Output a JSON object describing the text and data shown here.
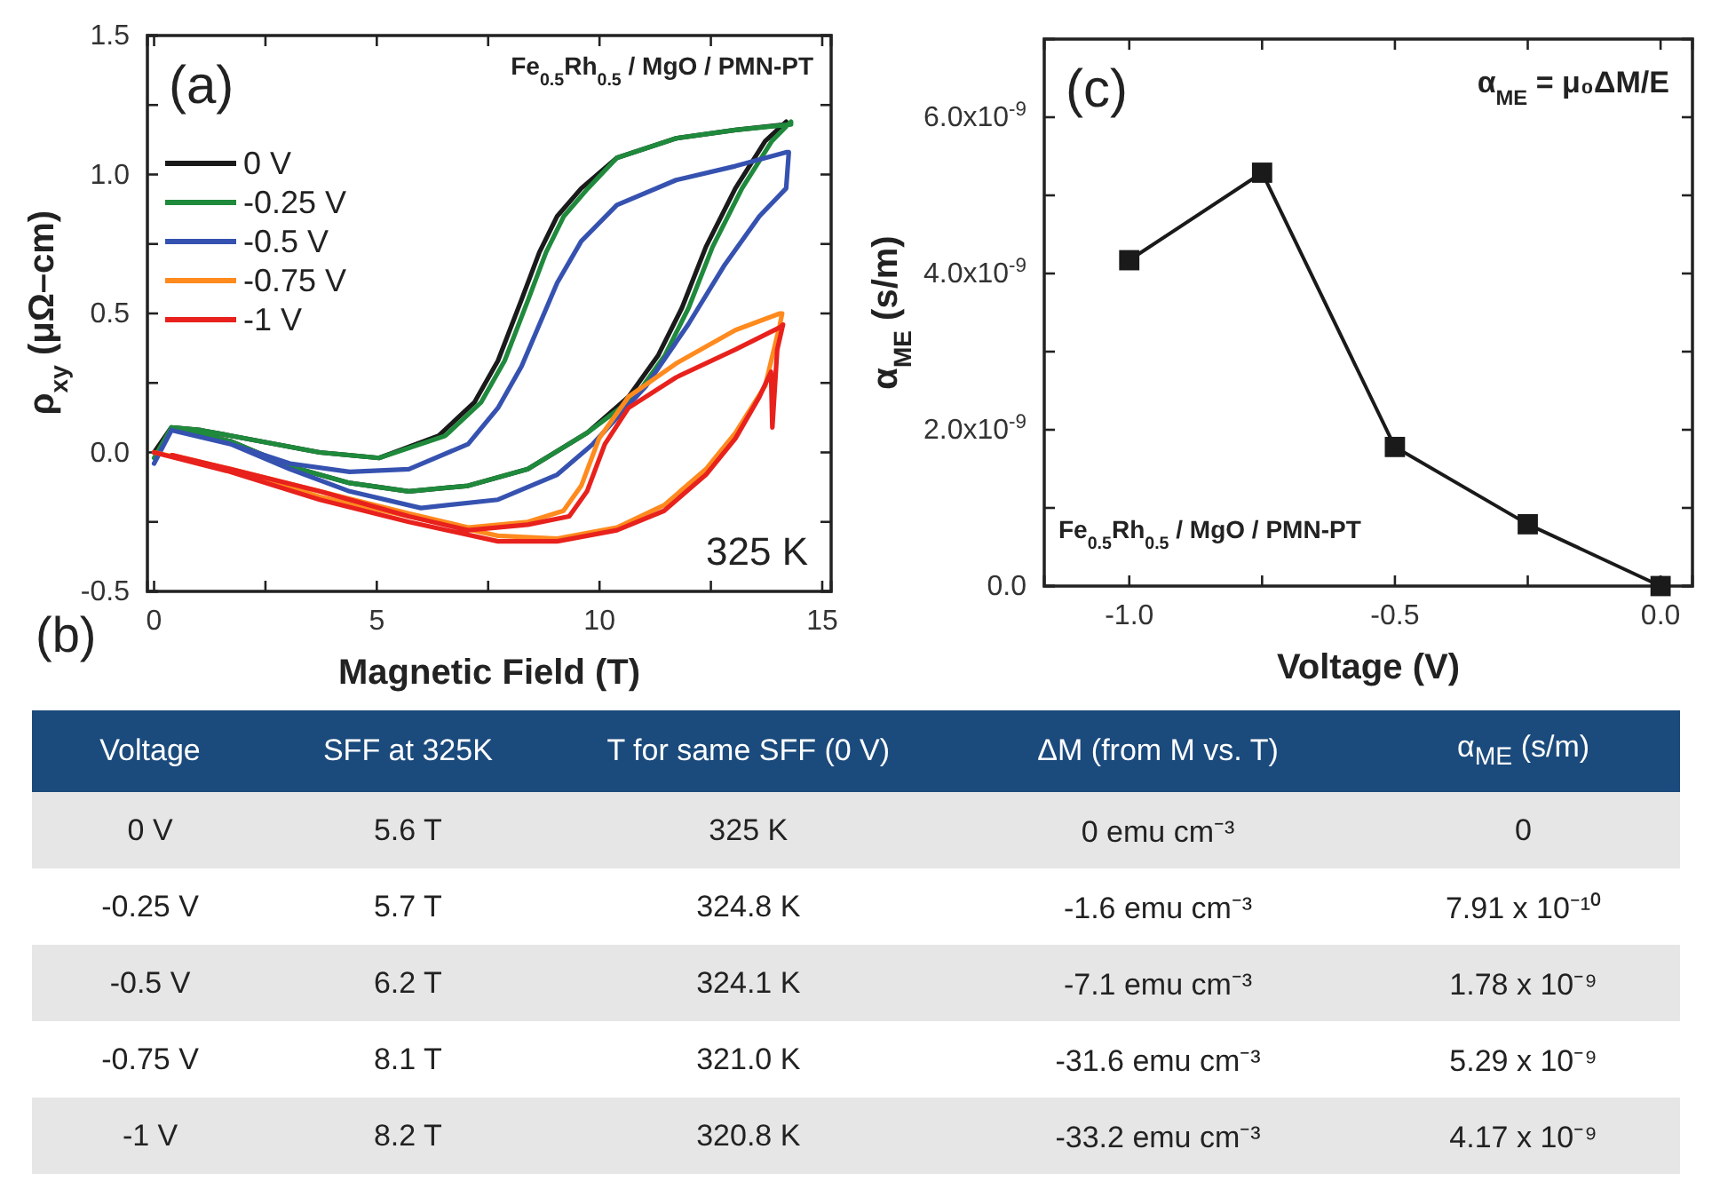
{
  "chart_data": [
    {
      "type": "line",
      "title": "(a)",
      "xlabel": "Magnetic Field (T)",
      "ylabel": "ρ$_{xy}$ (μΩ–cm)",
      "xlim": [
        -0.15,
        15.2
      ],
      "ylim": [
        -0.5,
        1.5
      ],
      "xticks": [
        0,
        {
          "value": 2.5,
          "label": null
        },
        5,
        {
          "value": 7.5,
          "label": null
        },
        10,
        {
          "value": 12.5,
          "label": null
        },
        15
      ],
      "yticks": [
        -0.5,
        {
          "value": -0.25,
          "label": null
        },
        {
          "value": 0,
          "label": "0.0"
        },
        {
          "value": 0.25,
          "label": null
        },
        0.5,
        {
          "value": 0.75,
          "label": null
        },
        {
          "value": 1,
          "label": "1.0"
        },
        {
          "value": 1.25,
          "label": null
        },
        1.5
      ],
      "grid": false,
      "legend": "top left",
      "marker": "none",
      "line_style": "solid",
      "annotations": [
        "Fe$_{0.5}$Rh$_{0.5}$ / MgO / PMN-PT",
        "325 K"
      ],
      "series": [
        {
          "name": "0 V",
          "color": "#1a1a1a",
          "x": [
            0,
            0.39,
            1.72,
            3.05,
            4.39,
            5.72,
            7.05,
            8.39,
            9.72,
            10.65,
            11.32,
            11.85,
            12.39,
            13.05,
            13.72,
            14.19,
            14.19,
            13.05,
            11.72,
            10.39,
            9.59,
            9.05,
            8.65,
            8.25,
            7.72,
            7.19,
            6.39,
            5.05,
            3.72,
            2.39,
            1.05,
            0.39
          ],
          "values": [
            0,
            0.09,
            0.04,
            -0.05,
            -0.11,
            -0.14,
            -0.12,
            -0.06,
            0.07,
            0.2,
            0.35,
            0.52,
            0.74,
            0.95,
            1.12,
            1.19,
            1.18,
            1.16,
            1.13,
            1.06,
            0.95,
            0.85,
            0.72,
            0.55,
            0.33,
            0.18,
            0.06,
            -0.02,
            0,
            0.04,
            0.08,
            0.09
          ]
        },
        {
          "name": "-0.25 V",
          "color": "#1f8a3c",
          "x": [
            0,
            0.39,
            1.72,
            3.05,
            4.39,
            5.72,
            7.05,
            8.39,
            9.72,
            10.8,
            11.47,
            12.0,
            12.54,
            13.2,
            13.87,
            14.3,
            14.3,
            13.05,
            11.72,
            10.39,
            9.74,
            9.2,
            8.8,
            8.4,
            7.87,
            7.34,
            6.54,
            5.05,
            3.72,
            2.39,
            1.05,
            0.39
          ],
          "values": [
            -0.02,
            0.09,
            0.04,
            -0.05,
            -0.11,
            -0.14,
            -0.12,
            -0.06,
            0.07,
            0.2,
            0.35,
            0.52,
            0.74,
            0.95,
            1.12,
            1.19,
            1.18,
            1.16,
            1.13,
            1.06,
            0.95,
            0.85,
            0.72,
            0.55,
            0.33,
            0.18,
            0.06,
            -0.02,
            0,
            0.04,
            0.08,
            0.09
          ]
        },
        {
          "name": "-0.5 V",
          "color": "#3652b0",
          "x": [
            0,
            0.39,
            1.72,
            3.05,
            4.39,
            5.99,
            7.72,
            9.05,
            9.85,
            11.05,
            11.99,
            12.79,
            13.59,
            14.19,
            14.25,
            14.19,
            13.05,
            11.72,
            10.39,
            9.59,
            9.05,
            8.65,
            8.25,
            7.72,
            7.05,
            5.72,
            4.39,
            3.05,
            1.72,
            0.39
          ],
          "values": [
            -0.04,
            0.08,
            0.03,
            -0.06,
            -0.14,
            -0.2,
            -0.17,
            -0.08,
            0.03,
            0.24,
            0.46,
            0.67,
            0.85,
            0.95,
            1.08,
            1.08,
            1.03,
            0.98,
            0.89,
            0.76,
            0.61,
            0.46,
            0.31,
            0.16,
            0.03,
            -0.06,
            -0.07,
            -0.04,
            0.03,
            0.08
          ]
        },
        {
          "name": "-0.75 V",
          "color": "#ff8a1e",
          "x": [
            0,
            1.72,
            3.72,
            5.72,
            7.72,
            9.05,
            10.39,
            11.45,
            12.39,
            13.05,
            13.72,
            14.05,
            14.1,
            14.05,
            13.05,
            11.72,
            10.65,
            9.99,
            9.59,
            9.19,
            8.39,
            7.05,
            5.72,
            3.72,
            1.72,
            0.4
          ],
          "values": [
            0,
            -0.06,
            -0.16,
            -0.23,
            -0.3,
            -0.31,
            -0.27,
            -0.19,
            -0.06,
            0.07,
            0.24,
            0.46,
            0.5,
            0.5,
            0.44,
            0.32,
            0.2,
            0.05,
            -0.12,
            -0.21,
            -0.25,
            -0.27,
            -0.22,
            -0.14,
            -0.06,
            -0.01
          ]
        },
        {
          "name": "-1 V",
          "color": "#e8211d",
          "x": [
            0,
            1.72,
            3.72,
            5.72,
            7.72,
            9.05,
            10.39,
            11.45,
            12.39,
            13.05,
            13.59,
            13.85,
            13.88,
            13.99,
            14.12,
            14.05,
            13.05,
            11.72,
            10.65,
            10.12,
            9.72,
            9.32,
            8.39,
            7.05,
            5.72,
            3.72,
            1.72,
            0.4
          ],
          "values": [
            0,
            -0.07,
            -0.17,
            -0.25,
            -0.32,
            -0.32,
            -0.28,
            -0.21,
            -0.08,
            0.05,
            0.2,
            0.29,
            0.09,
            0.37,
            0.46,
            0.45,
            0.37,
            0.27,
            0.16,
            0.03,
            -0.14,
            -0.23,
            -0.26,
            -0.28,
            -0.23,
            -0.14,
            -0.06,
            -0.01
          ]
        }
      ]
    },
    {
      "type": "line",
      "title": "(c)",
      "xlabel": "Voltage (V)",
      "ylabel": "α$_{ME}$ (s/m)",
      "xlim": [
        -1.16,
        0.06
      ],
      "ylim": [
        0,
        7e-09
      ],
      "xticks": [
        {
          "value": -1,
          "label": "-1.0"
        },
        {
          "value": -0.75,
          "label": null
        },
        -0.5,
        {
          "value": -0.25,
          "label": null
        },
        {
          "value": 0,
          "label": "0.0"
        }
      ],
      "yticks": [
        {
          "value": 0,
          "label": "0.0"
        },
        {
          "value": 1e-09,
          "label": null
        },
        {
          "value": 2e-09,
          "label": "2.0x10$^{-9}$"
        },
        {
          "value": 3e-09,
          "label": null
        },
        {
          "value": 4e-09,
          "label": "4.0x10$^{-9}$"
        },
        {
          "value": 5e-09,
          "label": null
        },
        {
          "value": 6e-09,
          "label": "6.0x10$^{-9}$"
        }
      ],
      "grid": false,
      "legend": false,
      "marker": "square",
      "line_style": "solid",
      "annotations": [
        "α$_{ME}$ = μ₀ΔM/E",
        "Fe$_{0.5}$Rh$_{0.5}$ / MgO / PMN-PT"
      ],
      "series": [
        {
          "color": "#1a1a1a",
          "x": [
            -1,
            -0.75,
            -0.5,
            -0.25,
            0
          ],
          "values": [
            4.17e-09,
            5.29e-09,
            1.78e-09,
            7.91e-10,
            0
          ]
        }
      ]
    },
    {
      "type": "heatmap",
      "title": "(b)",
      "ylabel": "Voltage",
      "categories": [
        "SFF at 325K",
        "T for same SFF (0 V)",
        "ΔM (from M vs. T)",
        "α$_{ME}$ (s/m)"
      ],
      "y_categories": [
        "0 V",
        "-0.25 V",
        "-0.5 V",
        "-0.75 V",
        "-1 V"
      ],
      "cells": [
        [
          null,
          null,
          null,
          null
        ],
        [
          null,
          null,
          null,
          null
        ],
        [
          null,
          null,
          null,
          null
        ],
        [
          null,
          null,
          null,
          null
        ],
        [
          null,
          null,
          null,
          null
        ]
      ],
      "cell_labels": [
        [
          "5.6 T",
          "325 K",
          "0 emu cm⁻³",
          "0"
        ],
        [
          "5.7 T",
          "324.8 K",
          "-1.6 emu cm⁻³",
          "7.91 x 10⁻¹⁰"
        ],
        [
          "6.2 T",
          "324.1 K",
          "-7.1 emu cm⁻³",
          "1.78 x 10⁻⁹"
        ],
        [
          "8.1 T",
          "321.0 K",
          "-31.6 emu cm⁻³",
          "5.29 x 10⁻⁹"
        ],
        [
          "8.2 T",
          "320.8 K",
          "-33.2 emu cm⁻³",
          "4.17 x 10⁻⁹"
        ]
      ]
    }
  ]
}
